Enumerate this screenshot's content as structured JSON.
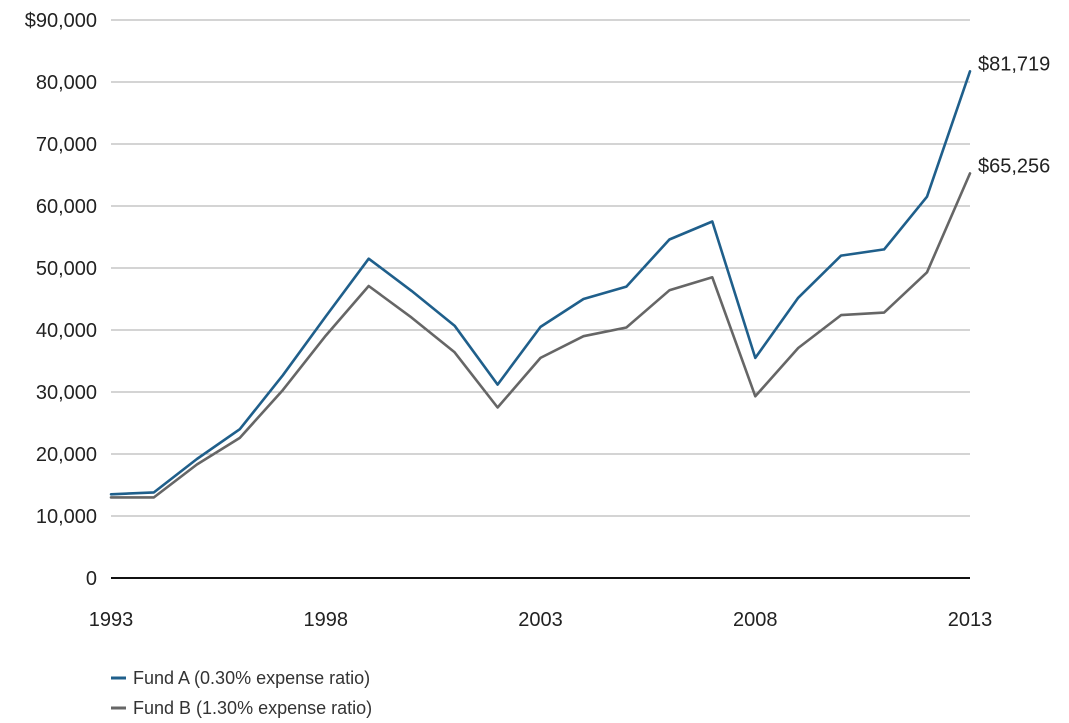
{
  "chart_data": {
    "type": "line",
    "title": "",
    "xlabel": "",
    "ylabel": "",
    "x": [
      1993,
      1994,
      1995,
      1996,
      1997,
      1998,
      1999,
      2000,
      2001,
      2002,
      2003,
      2004,
      2005,
      2006,
      2007,
      2008,
      2009,
      2010,
      2011,
      2012,
      2013
    ],
    "xticks": [
      "1993",
      "1998",
      "2003",
      "2008",
      "2013"
    ],
    "xlim": [
      1993,
      2013
    ],
    "ylim": [
      0,
      90000
    ],
    "yticks": [
      "0",
      "10,000",
      "20,000",
      "30,000",
      "40,000",
      "50,000",
      "60,000",
      "70,000",
      "80,000",
      "$90,000"
    ],
    "grid": true,
    "legend_position": "bottom-left",
    "series": [
      {
        "name": "Fund A (0.30% expense ratio)",
        "color": "#1f5f8b",
        "values": [
          13500,
          13800,
          19200,
          24000,
          32700,
          42200,
          51500,
          46300,
          40700,
          31200,
          40500,
          45000,
          47000,
          54600,
          57500,
          35500,
          45200,
          52000,
          53000,
          61500,
          81719
        ]
      },
      {
        "name": "Fund B (1.30% expense ratio)",
        "color": "#666666",
        "values": [
          13000,
          13000,
          18300,
          22600,
          30300,
          39100,
          47100,
          42000,
          36400,
          27500,
          35500,
          39000,
          40400,
          46400,
          48500,
          29300,
          37100,
          42400,
          42800,
          49300,
          65256
        ]
      }
    ],
    "end_labels": [
      "$81,719",
      "$65,256"
    ]
  }
}
